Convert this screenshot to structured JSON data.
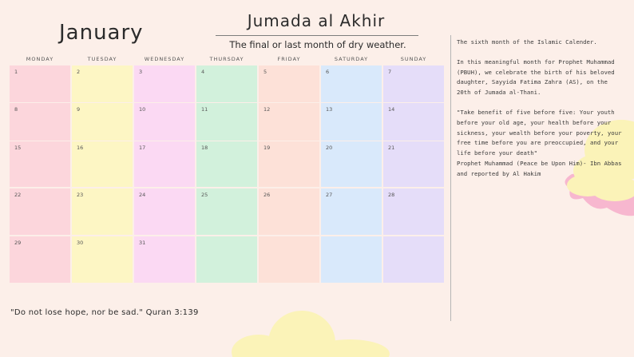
{
  "month": "January",
  "islamic_month": "Jumada al Akhir",
  "subtitle": "The final or last month of dry weather.",
  "weekdays": [
    "MONDAY",
    "TUESDAY",
    "WEDNESDAY",
    "THURSDAY",
    "FRIDAY",
    "SATURDAY",
    "SUNDAY"
  ],
  "weeks": [
    [
      "1",
      "2",
      "3",
      "4",
      "5",
      "6",
      "7"
    ],
    [
      "8",
      "9",
      "10",
      "11",
      "12",
      "13",
      "14"
    ],
    [
      "15",
      "16",
      "17",
      "18",
      "19",
      "20",
      "21"
    ],
    [
      "22",
      "23",
      "24",
      "25",
      "26",
      "27",
      "28"
    ],
    [
      "29",
      "30",
      "31",
      "",
      "",
      "",
      ""
    ]
  ],
  "sidebar": {
    "intro": "The sixth month of the Islamic Calender.",
    "birth": "In this meaningful month for Prophet Muhammad (PBUH), we celebrate the birth of his beloved daughter, Sayyida Fatima Zahra (AS), on the 20th of Jumada al-Thani.",
    "hadith": "\"Take benefit of five before five: Your youth before your old age, your health before your sickness, your wealth before your poverty, your free time before you are preoccupied, and your life before your death\"",
    "attribution": "Prophet Muhammad (Peace be Upon Him)- Ibn Abbas and reported by Al Hakim"
  },
  "quote": "\"Do not lose hope, nor be sad.\"  Quran 3:139",
  "colors": {
    "background": "#fcefe9",
    "monday": "#fcd6dc",
    "tuesday": "#fdf6c4",
    "wednesday": "#fbd9f3",
    "thursday": "#d2f1dc",
    "friday": "#fde1d8",
    "saturday": "#d9e9fb",
    "sunday": "#e5ddf9",
    "cloud_yellow": "#fbf3b8",
    "cloud_pink": "#f7b7cf"
  }
}
